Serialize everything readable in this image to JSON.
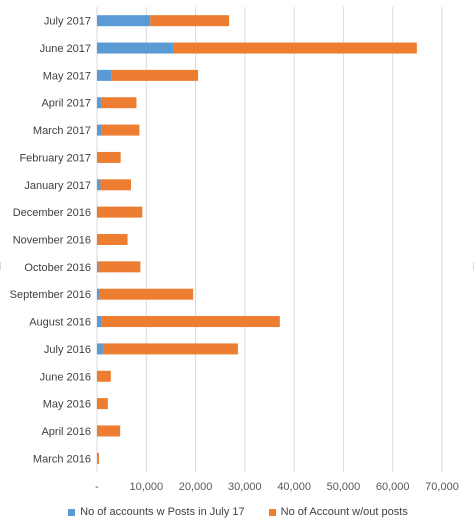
{
  "chart_data": {
    "type": "bar",
    "orientation": "horizontal",
    "stacked": true,
    "categories": [
      "July 2017",
      "June 2017",
      "May 2017",
      "April 2017",
      "March 2017",
      "February 2017",
      "January 2017",
      "December 2016",
      "November 2016",
      "October 2016",
      "September 2016",
      "August 2016",
      "July 2016",
      "June 2016",
      "May 2016",
      "April 2016",
      "March 2016"
    ],
    "series": [
      {
        "name": "No of accounts w Posts in July 17",
        "color": "#5B9BD5",
        "values": [
          10800,
          15500,
          3000,
          800,
          800,
          0,
          700,
          200,
          200,
          300,
          400,
          900,
          1200,
          100,
          100,
          100,
          0
        ]
      },
      {
        "name": "No of Account w/out posts",
        "color": "#ED7D31",
        "values": [
          16000,
          49400,
          17500,
          7200,
          7800,
          4800,
          6200,
          9000,
          6000,
          8500,
          19100,
          36200,
          27400,
          2700,
          2100,
          4600,
          400
        ]
      }
    ],
    "xlim": [
      0,
      70000
    ],
    "xticks": [
      "-",
      "10,000",
      "20,000",
      "30,000",
      "40,000",
      "50,000",
      "60,000",
      "70,000"
    ],
    "grid": "vertical",
    "legend_position": "bottom"
  }
}
